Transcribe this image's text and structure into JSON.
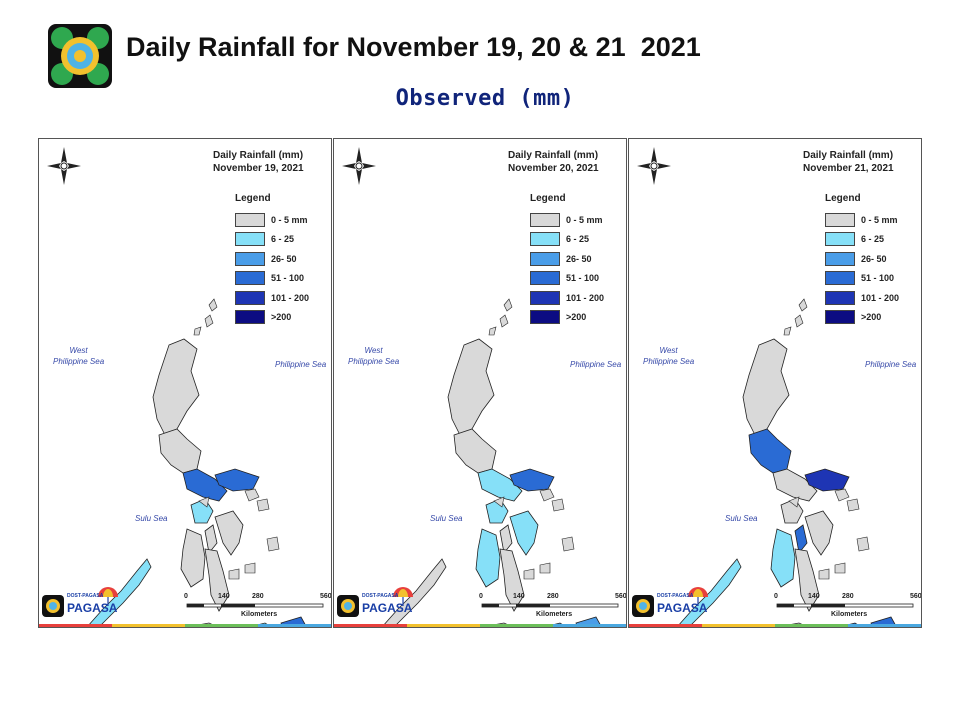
{
  "header": {
    "title": "Daily Rainfall for November 19, 20 & 21  2021",
    "subtitle": "Observed (mm)"
  },
  "legend": {
    "title": "Legend",
    "items": [
      {
        "label": "0 - 5 mm",
        "color": "#d9d9d9"
      },
      {
        "label": "6 - 25",
        "color": "#86e0f8"
      },
      {
        "label": "26- 50",
        "color": "#4a9de8"
      },
      {
        "label": "51 - 100",
        "color": "#2a6bd4"
      },
      {
        "label": "101 - 200",
        "color": "#1e35b4"
      },
      {
        "label": ">200",
        "color": "#0c0c82"
      }
    ]
  },
  "labels": {
    "west_sea": "West\nPhilippine Sea",
    "east_sea": "Philippine Sea",
    "sulu_sea": "Sulu Sea",
    "scale_unit": "Kilometers",
    "scale_ticks": [
      "0",
      "140",
      "280",
      "560"
    ],
    "brand": "PAGASA",
    "brand_small": "DOST-PAGASA"
  },
  "panels": [
    {
      "title": "Daily Rainfall (mm)\nNovember 19, 2021",
      "date": "November 19, 2021"
    },
    {
      "title": "Daily Rainfall (mm)\nNovember 20, 2021",
      "date": "November 20, 2021"
    },
    {
      "title": "Daily Rainfall (mm)\nNovember 21, 2021",
      "date": "November 21, 2021"
    }
  ],
  "colors": {
    "land": "#d9d9d9",
    "border": "#222222",
    "stripe": [
      "#e8403c",
      "#f2c12e",
      "#6cbf5a",
      "#4aa8e0"
    ]
  }
}
